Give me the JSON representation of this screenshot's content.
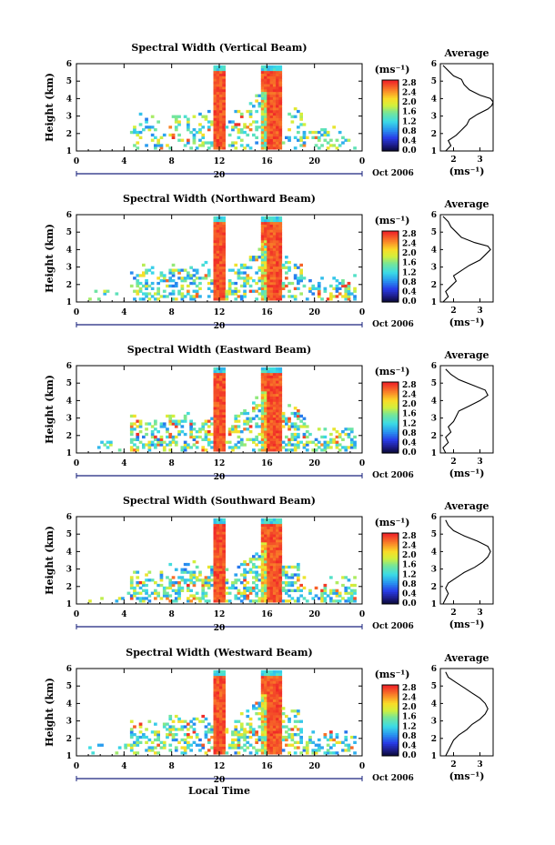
{
  "chart_data": [
    {
      "type": "heatmap",
      "title": "Spectral Width (Vertical Beam)",
      "ylabel": "Height (km)",
      "ylim": [
        1,
        6
      ],
      "yticks": [
        "1",
        "2",
        "3",
        "4",
        "5",
        "6"
      ],
      "xticks": [
        "0",
        "4",
        "8",
        "12",
        "16",
        "20",
        "0"
      ],
      "date_label": "20",
      "month_label": "Oct 2006",
      "colorbar": {
        "unit_label": "(ms⁻¹)",
        "ticks": [
          "2.8",
          "2.4",
          "2.0",
          "1.6",
          "1.2",
          "0.8",
          "0.4",
          "0.0"
        ],
        "range": [
          0,
          2.8
        ]
      },
      "profile": {
        "title": "Average",
        "xticks": [
          "2",
          "3"
        ],
        "xlim": [
          1.5,
          3.5
        ],
        "xlabel": "(ms⁻¹)",
        "heights": [
          1.0,
          1.3,
          1.6,
          1.9,
          2.2,
          2.5,
          2.8,
          3.1,
          3.4,
          3.6,
          3.8,
          4.0,
          4.2,
          4.5,
          4.8,
          5.1,
          5.3,
          5.6,
          5.9
        ],
        "values": [
          1.7,
          1.9,
          1.8,
          2.1,
          2.3,
          2.5,
          2.6,
          2.9,
          3.3,
          3.45,
          3.5,
          3.4,
          3.0,
          2.6,
          2.4,
          2.3,
          2.0,
          1.8,
          1.6
        ]
      }
    },
    {
      "type": "heatmap",
      "title": "Spectral Width (Northward Beam)",
      "ylabel": "Height (km)",
      "ylim": [
        1,
        6
      ],
      "yticks": [
        "1",
        "2",
        "3",
        "4",
        "5",
        "6"
      ],
      "xticks": [
        "0",
        "4",
        "8",
        "12",
        "16",
        "20",
        "0"
      ],
      "date_label": "20",
      "month_label": "Oct 2006",
      "colorbar": {
        "unit_label": "(ms⁻¹)",
        "ticks": [
          "2.8",
          "2.4",
          "2.0",
          "1.6",
          "1.2",
          "0.8",
          "0.4",
          "0.0"
        ],
        "range": [
          0,
          2.8
        ]
      },
      "profile": {
        "title": "Average",
        "xticks": [
          "2",
          "3"
        ],
        "xlim": [
          1.5,
          3.5
        ],
        "xlabel": "(ms⁻¹)",
        "heights": [
          1.0,
          1.3,
          1.6,
          1.9,
          2.2,
          2.5,
          2.8,
          3.1,
          3.4,
          3.7,
          4.0,
          4.2,
          4.4,
          4.7,
          5.0,
          5.3,
          5.6,
          5.9
        ],
        "values": [
          1.6,
          1.8,
          1.7,
          1.9,
          2.1,
          2.0,
          2.3,
          2.6,
          3.0,
          3.2,
          3.4,
          3.3,
          2.8,
          2.3,
          2.1,
          1.9,
          1.8,
          1.6
        ]
      }
    },
    {
      "type": "heatmap",
      "title": "Spectral Width (Eastward Beam)",
      "ylabel": "Height (km)",
      "ylim": [
        1,
        6
      ],
      "yticks": [
        "1",
        "2",
        "3",
        "4",
        "5",
        "6"
      ],
      "xticks": [
        "0",
        "4",
        "8",
        "12",
        "16",
        "20",
        "0"
      ],
      "date_label": "20",
      "month_label": "Oct 2006",
      "colorbar": {
        "unit_label": "(ms⁻¹)",
        "ticks": [
          "2.8",
          "2.4",
          "2.0",
          "1.6",
          "1.2",
          "0.8",
          "0.4",
          "0.0"
        ],
        "range": [
          0,
          2.8
        ]
      },
      "profile": {
        "title": "Average",
        "xticks": [
          "2",
          "3"
        ],
        "xlim": [
          1.5,
          3.5
        ],
        "xlabel": "(ms⁻¹)",
        "heights": [
          1.0,
          1.3,
          1.6,
          1.9,
          2.2,
          2.5,
          2.8,
          3.1,
          3.4,
          3.7,
          4.0,
          4.3,
          4.6,
          4.9,
          5.2,
          5.5,
          5.8
        ],
        "values": [
          1.7,
          1.6,
          1.8,
          1.7,
          1.9,
          1.8,
          2.0,
          2.1,
          2.2,
          2.6,
          3.0,
          3.3,
          3.2,
          2.7,
          2.2,
          1.9,
          1.7
        ]
      }
    },
    {
      "type": "heatmap",
      "title": "Spectral Width (Southward Beam)",
      "ylabel": "Height (km)",
      "ylim": [
        1,
        6
      ],
      "yticks": [
        "1",
        "2",
        "3",
        "4",
        "5",
        "6"
      ],
      "xticks": [
        "0",
        "4",
        "8",
        "12",
        "16",
        "20",
        "0"
      ],
      "date_label": "20",
      "month_label": "Oct 2006",
      "colorbar": {
        "unit_label": "(ms⁻¹)",
        "ticks": [
          "2.8",
          "2.4",
          "2.0",
          "1.6",
          "1.2",
          "0.8",
          "0.4",
          "0.0"
        ],
        "range": [
          0,
          2.8
        ]
      },
      "profile": {
        "title": "Average",
        "xticks": [
          "2",
          "3"
        ],
        "xlim": [
          1.5,
          3.5
        ],
        "xlabel": "(ms⁻¹)",
        "heights": [
          1.0,
          1.3,
          1.6,
          1.9,
          2.2,
          2.5,
          2.8,
          3.1,
          3.4,
          3.7,
          4.0,
          4.3,
          4.6,
          4.9,
          5.2,
          5.5,
          5.8
        ],
        "values": [
          1.6,
          1.7,
          1.8,
          1.7,
          1.8,
          2.1,
          2.4,
          2.8,
          3.1,
          3.3,
          3.4,
          3.3,
          2.9,
          2.4,
          2.0,
          1.8,
          1.7
        ]
      }
    },
    {
      "type": "heatmap",
      "title": "Spectral Width (Westward Beam)",
      "ylabel": "Height (km)",
      "xlabel": "Local Time",
      "ylim": [
        1,
        6
      ],
      "yticks": [
        "1",
        "2",
        "3",
        "4",
        "5",
        "6"
      ],
      "xticks": [
        "0",
        "4",
        "8",
        "12",
        "16",
        "20",
        "0"
      ],
      "date_label": "20",
      "month_label": "Oct 2006",
      "colorbar": {
        "unit_label": "(ms⁻¹)",
        "ticks": [
          "2.8",
          "2.4",
          "2.0",
          "1.6",
          "1.2",
          "0.8",
          "0.4",
          "0.0"
        ],
        "range": [
          0,
          2.8
        ]
      },
      "profile": {
        "title": "Average",
        "xticks": [
          "2",
          "3"
        ],
        "xlim": [
          1.5,
          3.5
        ],
        "xlabel": "(ms⁻¹)",
        "heights": [
          1.0,
          1.3,
          1.6,
          1.9,
          2.2,
          2.5,
          2.8,
          3.1,
          3.4,
          3.7,
          4.0,
          4.3,
          4.6,
          4.9,
          5.2,
          5.5,
          5.8
        ],
        "values": [
          1.7,
          1.8,
          1.9,
          2.0,
          2.2,
          2.5,
          2.7,
          3.0,
          3.2,
          3.3,
          3.2,
          3.0,
          2.7,
          2.4,
          2.1,
          1.8,
          1.7
        ]
      }
    }
  ]
}
